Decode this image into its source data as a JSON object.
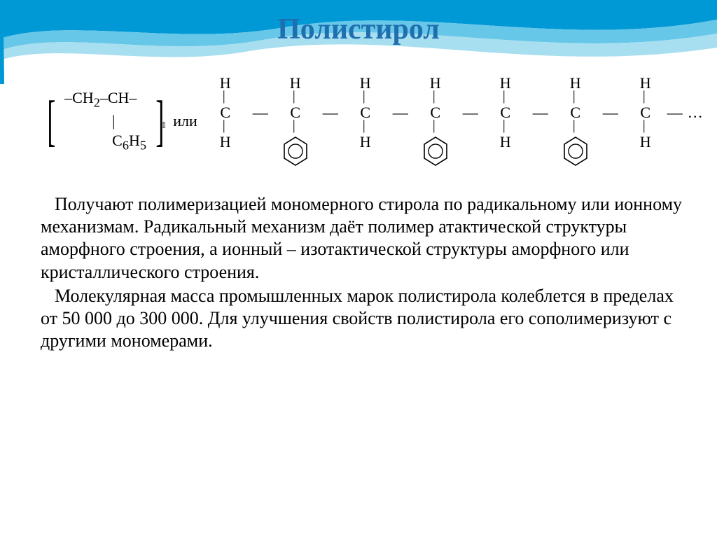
{
  "title": {
    "text": "Полистирол",
    "color": "#1f6fb0",
    "fontsize": 42
  },
  "wave": {
    "colors": [
      "#0099d6",
      "#66c7e8",
      "#a8dff0",
      "#ffffff"
    ]
  },
  "formula": {
    "repeat_unit": {
      "top": "–CH",
      "top_sub": "2",
      "top2": "–CH–",
      "mid_bond": "|",
      "bottom": "C",
      "bottom_sub1": "6",
      "bottom2": "H",
      "bottom_sub2": "5",
      "subscript_n": "n"
    },
    "or": "или",
    "chain": {
      "carbons": 7,
      "top_atom": "H",
      "center_atom": "C",
      "bottom_plain": "H",
      "phenyl_positions": [
        1,
        3,
        5
      ],
      "h_bond": "—",
      "trailing": "…"
    },
    "benzene_color": "#000000",
    "text_color": "#000000",
    "fontsize": 22
  },
  "paragraphs": [
    "Получают полимеризацией мономерного стирола по радикальному или ионному механизмам. Радикальный механизм даёт полимер атактической структуры аморфного строения, а ионный – изотактической структуры аморфного или кристаллического строения.",
    "Молекулярная масса промышленных марок полистирола колеблется в пределах от 50 000 до 300 000. Для улучшения свойств полистирола его сополимеризуют с другими мономерами."
  ],
  "body_fontsize": 26,
  "body_color": "#000000",
  "background_color": "#ffffff"
}
